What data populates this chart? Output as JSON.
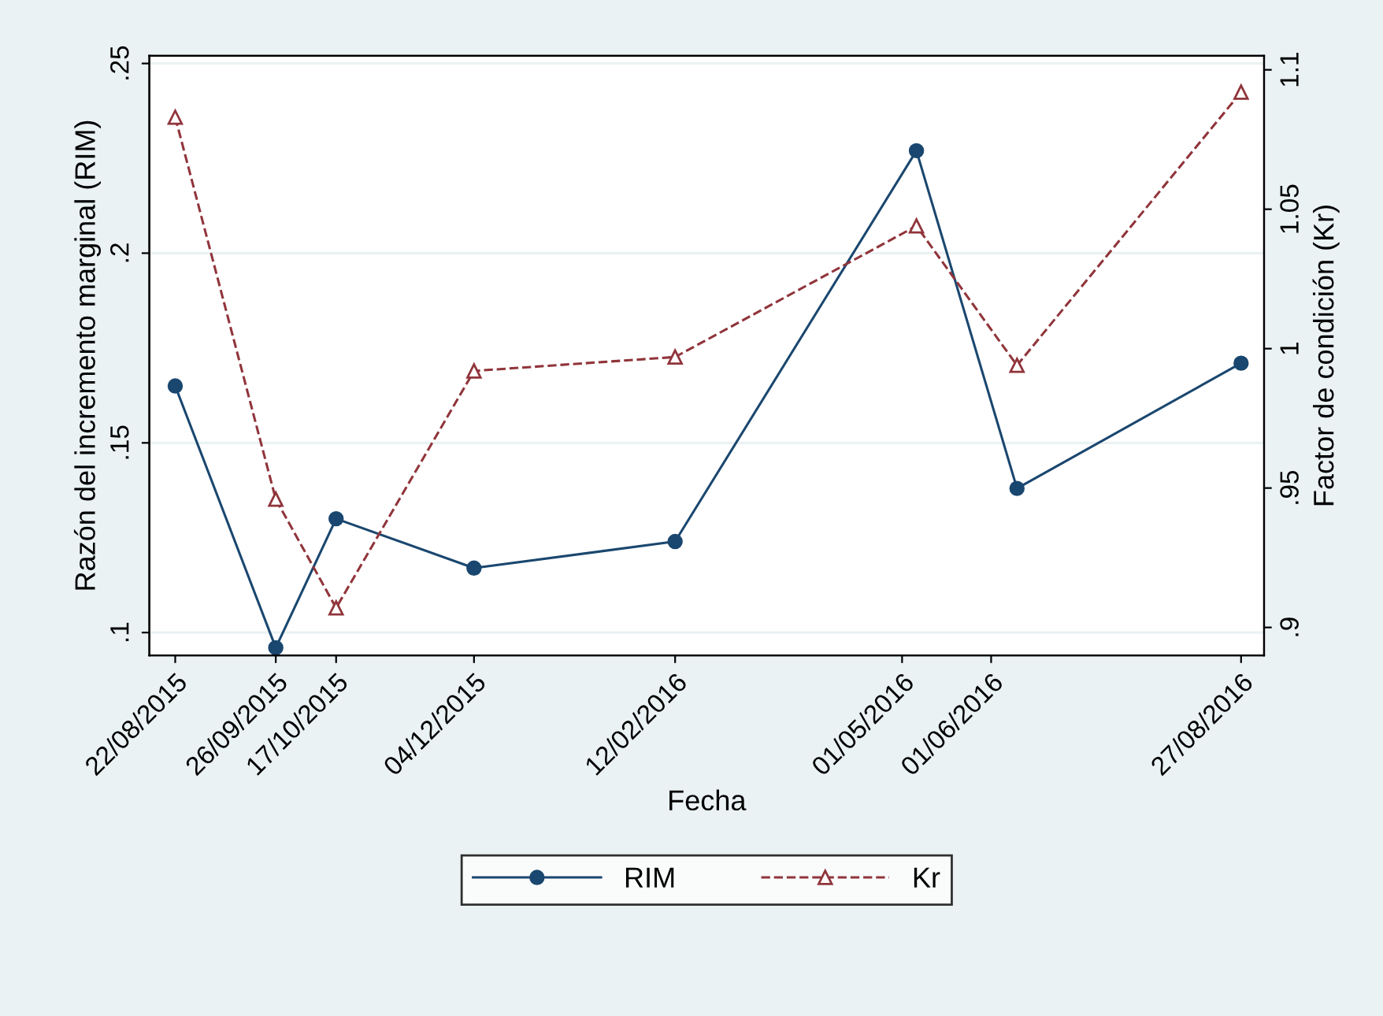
{
  "chart_data": {
    "type": "line",
    "xlabel": "Fecha",
    "ylabel": "Razón del incremento marginal (RIM)",
    "y2label": "Factor de condición (Kr)",
    "xlim": [
      "2015-08-13",
      "2016-09-04"
    ],
    "xticks": [
      {
        "value": "2015-08-22",
        "label": "22/08/2015"
      },
      {
        "value": "2015-09-26",
        "label": "26/09/2015"
      },
      {
        "value": "2015-10-17",
        "label": "17/10/2015"
      },
      {
        "value": "2015-12-04",
        "label": "04/12/2015"
      },
      {
        "value": "2016-02-12",
        "label": "12/02/2016"
      },
      {
        "value": "2016-05-01",
        "label": "01/05/2016"
      },
      {
        "value": "2016-06-01",
        "label": "01/06/2016"
      },
      {
        "value": "2016-08-27",
        "label": "27/08/2016"
      }
    ],
    "x": [
      "2015-08-22",
      "2015-09-26",
      "2015-10-17",
      "2015-12-04",
      "2016-02-12",
      "2016-05-06",
      "2016-06-10",
      "2016-08-27"
    ],
    "ylim": [
      0.094,
      0.252
    ],
    "yticks": [
      {
        "value": 0.1,
        "label": ".1"
      },
      {
        "value": 0.15,
        "label": ".15"
      },
      {
        "value": 0.2,
        "label": ".2"
      },
      {
        "value": 0.25,
        "label": ".25"
      }
    ],
    "y2lim": [
      0.89,
      1.105
    ],
    "y2ticks": [
      {
        "value": 0.9,
        "label": ".9"
      },
      {
        "value": 0.95,
        "label": ".95"
      },
      {
        "value": 1,
        "label": "1"
      },
      {
        "value": 1.05,
        "label": "1.05"
      },
      {
        "value": 1.1,
        "label": "1.1"
      }
    ],
    "grid": "y",
    "legend": "bottom",
    "series": [
      {
        "name": "RIM",
        "color": "#1a476f",
        "marker": "circle",
        "line_style": "solid",
        "values": [
          0.165,
          0.096,
          0.13,
          0.117,
          0.124,
          0.227,
          0.138,
          0.171
        ]
      },
      {
        "name": "Kr",
        "color": "#90353b",
        "marker": "triangle",
        "line_style": "dashed",
        "axis": "y2",
        "values": [
          1.083,
          0.946,
          0.907,
          0.992,
          0.997,
          1.044,
          0.994,
          1.092
        ]
      }
    ]
  }
}
